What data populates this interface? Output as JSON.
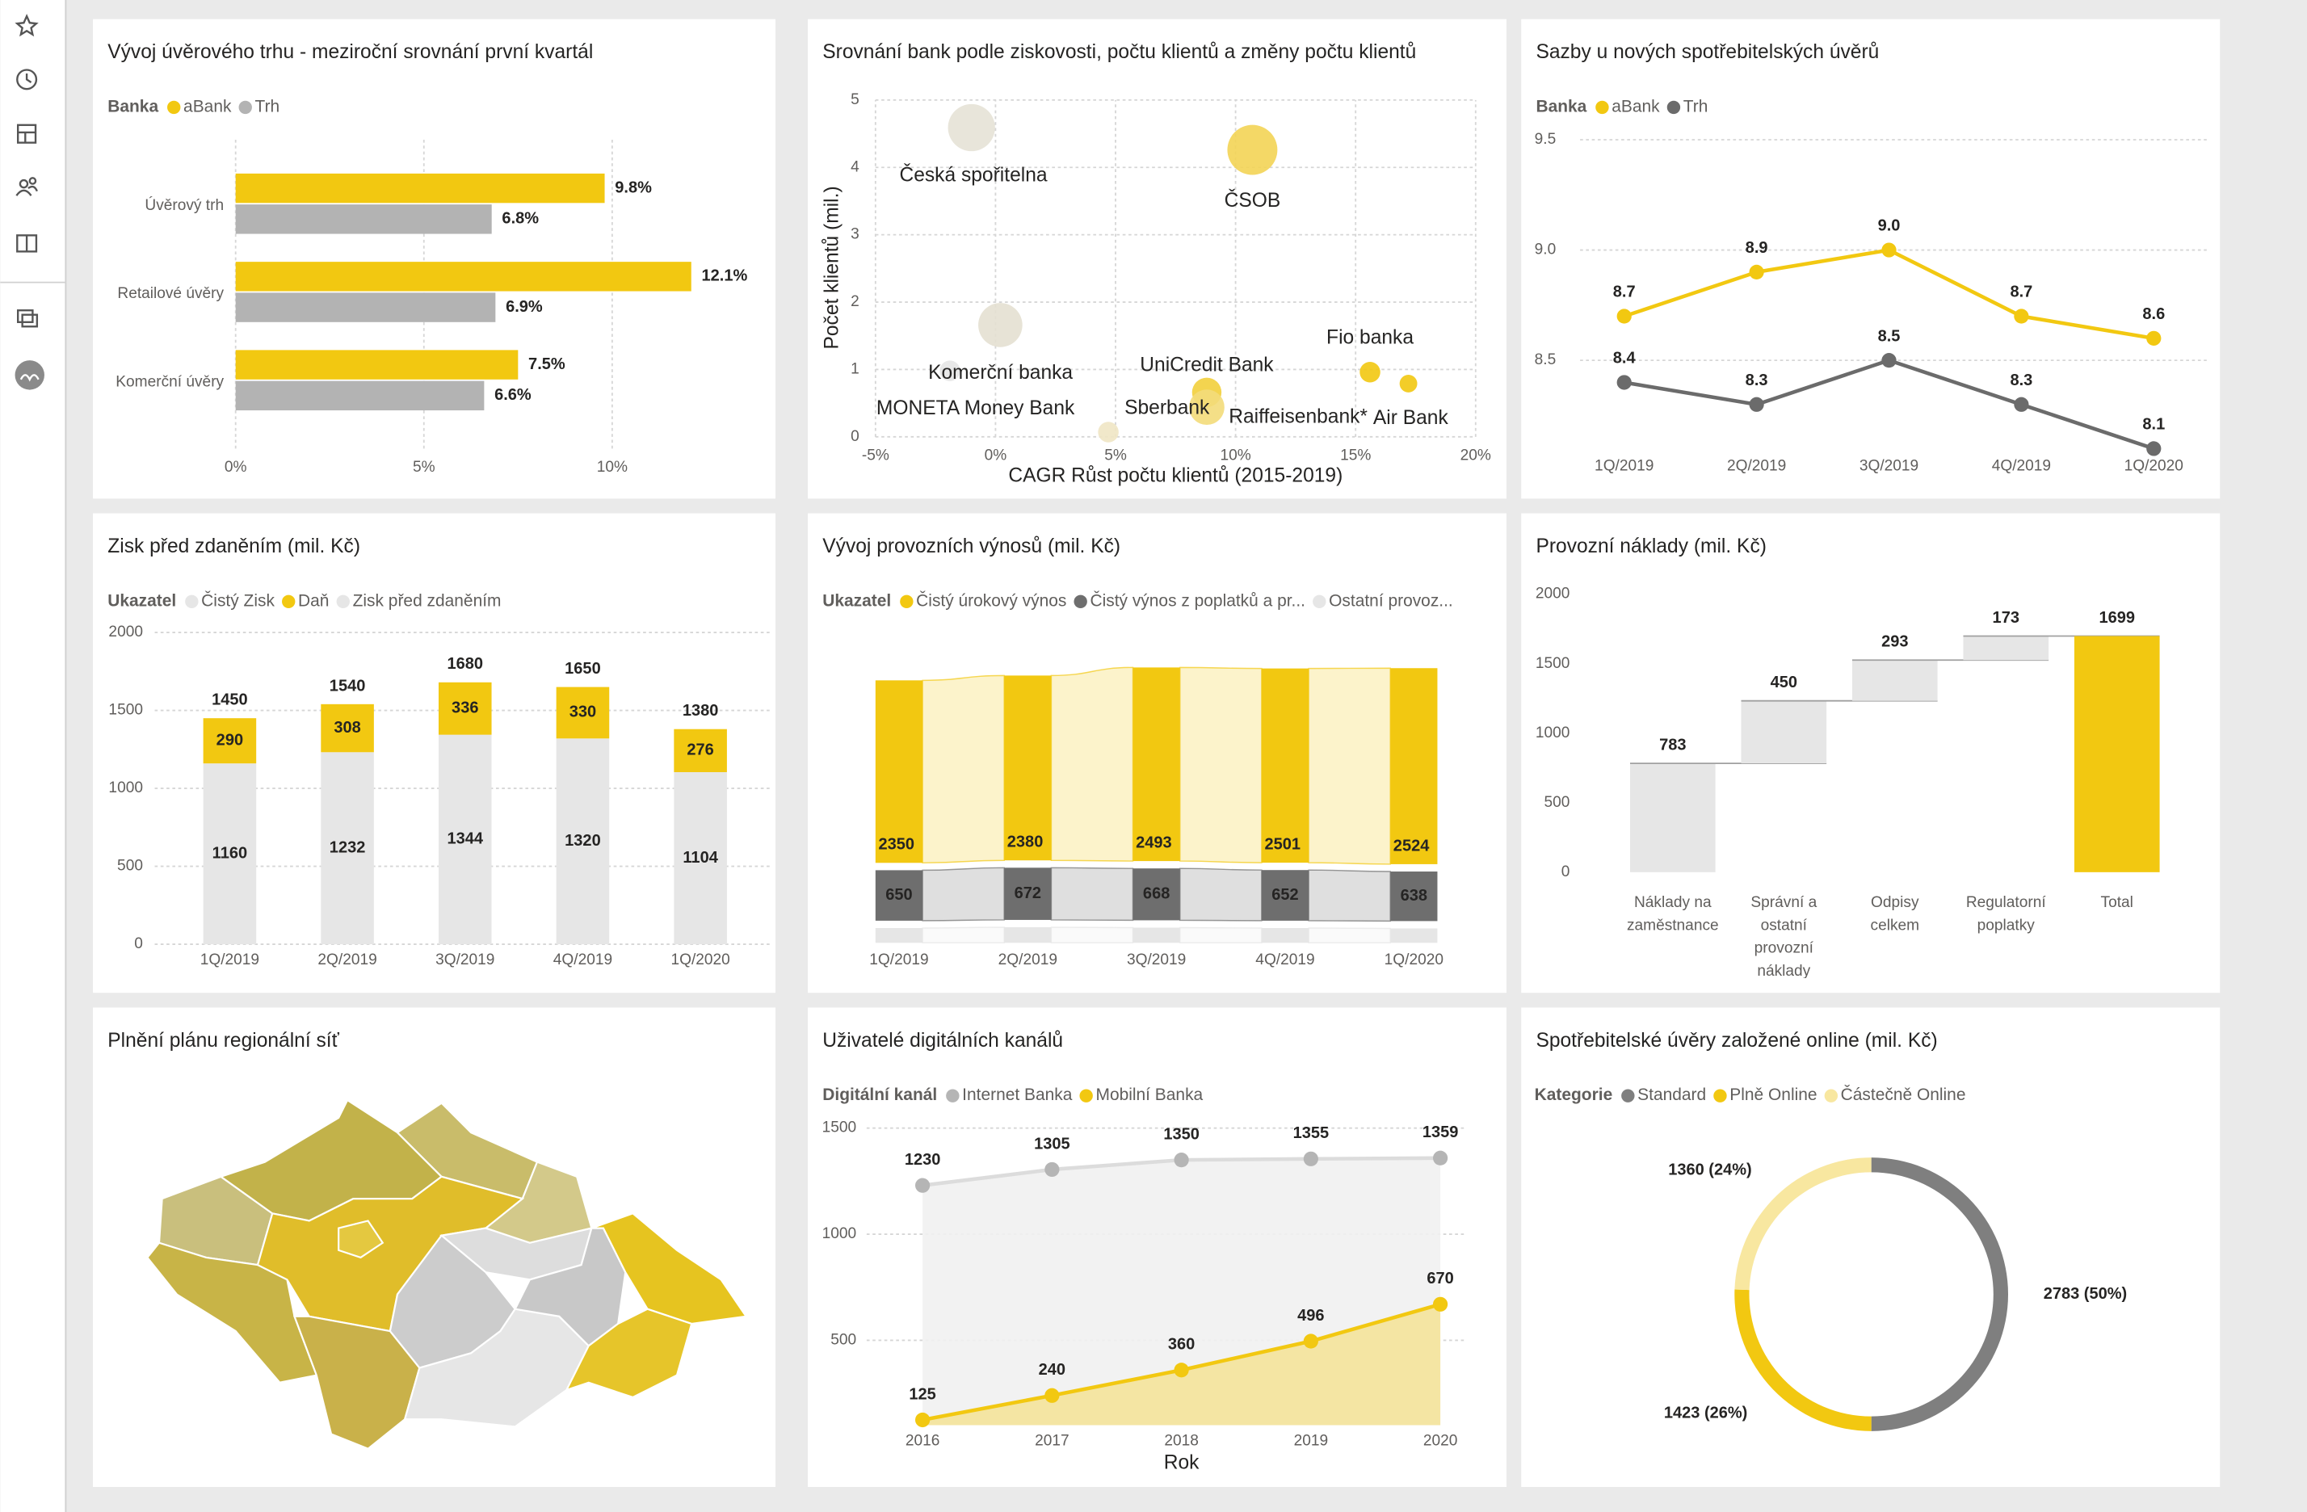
{
  "chart_data": [
    {
      "type": "bar",
      "orientation": "horizontal",
      "title": "Vývoj úvěrového trhu - meziroční srovnání první kvartál",
      "legend_title": "Banka",
      "categories": [
        "Úvěrový trh",
        "Retailové úvěry",
        "Komerční úvěry"
      ],
      "series": [
        {
          "name": "aBank",
          "color": "#f2c811",
          "values": [
            9.8,
            12.1,
            7.5
          ],
          "value_labels": [
            "9.8%",
            "12.1%",
            "7.5%"
          ]
        },
        {
          "name": "Trh",
          "color": "#b3b3b3",
          "values": [
            6.8,
            6.9,
            6.6
          ],
          "value_labels": [
            "6.8%",
            "6.9%",
            "6.6%"
          ]
        }
      ],
      "xlim": [
        0,
        14
      ],
      "xticks": [
        {
          "value": 0,
          "label": "0%"
        },
        {
          "value": 5,
          "label": "5%"
        },
        {
          "value": 10,
          "label": "10%"
        }
      ],
      "grid": true
    },
    {
      "type": "scatter",
      "title": "Srovnání bank podle ziskovosti, počtu klientů a změny počtu klientů",
      "x_label": "CAGR Růst počtu klientů (2015-2019)",
      "y_label": "Počet klientů (mil.)",
      "point_labels": [
        "Česká spořitelna",
        "ČSOB",
        "Komerční banka",
        "MONETA Money Bank",
        "UniCredit Bank",
        "Raiffeisenbank*",
        "Sberbank",
        "Fio banka",
        "Air Bank"
      ],
      "x": [
        -1.0,
        10.7,
        0.2,
        -1.9,
        8.8,
        8.8,
        4.7,
        15.6,
        17.2
      ],
      "values": [
        4.59,
        4.26,
        1.66,
        0.98,
        0.66,
        0.44,
        0.07,
        0.96,
        0.79
      ],
      "sizes": [
        256,
        289,
        225,
        49,
        100,
        144,
        49,
        49,
        36
      ],
      "colors": [
        "#e6e2d6",
        "#f3d455",
        "#e4e0d2",
        "#e6e6e6",
        "#f2cf3c",
        "#f3dc7a",
        "#efe6c4",
        "#f2c811",
        "#f2c811"
      ],
      "xlim": [
        -5,
        20
      ],
      "xticks": [
        {
          "value": -5,
          "label": "-5%"
        },
        {
          "value": 0,
          "label": "0%"
        },
        {
          "value": 5,
          "label": "5%"
        },
        {
          "value": 10,
          "label": "10%"
        },
        {
          "value": 15,
          "label": "15%"
        },
        {
          "value": 20,
          "label": "20%"
        }
      ],
      "ylim": [
        0,
        5
      ],
      "yticks": [
        0,
        1,
        2,
        3,
        4,
        5
      ],
      "grid": true
    },
    {
      "type": "line",
      "title": "Sazby u nových spotřebitelských úvěrů",
      "legend_title": "Banka",
      "categories": [
        "1Q/2019",
        "2Q/2019",
        "3Q/2019",
        "4Q/2019",
        "1Q/2020"
      ],
      "series": [
        {
          "name": "aBank",
          "color": "#f2c811",
          "values": [
            8.7,
            8.9,
            9.0,
            8.7,
            8.6
          ],
          "value_labels": [
            "8.7",
            "8.9",
            "9.0",
            "8.7",
            "8.6"
          ]
        },
        {
          "name": "Trh",
          "color": "#6b6b6b",
          "values": [
            8.4,
            8.3,
            8.5,
            8.3,
            8.1
          ],
          "value_labels": [
            "8.4",
            "8.3",
            "8.5",
            "8.3",
            "8.1"
          ]
        }
      ],
      "ylim": [
        8.1,
        9.5
      ],
      "yticks": [
        8.5,
        {
          "value": 9,
          "label": "9.0"
        },
        9.5
      ],
      "grid": true
    },
    {
      "type": "stacked_bar",
      "title": "Zisk před zdaněním (mil. Kč)",
      "legend_title": "Ukazatel",
      "categories": [
        "1Q/2019",
        "2Q/2019",
        "3Q/2019",
        "4Q/2019",
        "1Q/2020"
      ],
      "series": [
        {
          "name": "Čistý Zisk",
          "color": "#e6e6e6",
          "values": [
            1160,
            1232,
            1344,
            1320,
            1104
          ]
        },
        {
          "name": "Daň",
          "color": "#f2c811",
          "values": [
            290,
            308,
            336,
            330,
            276
          ]
        }
      ],
      "totals": {
        "name": "Zisk před zdaněním",
        "color": "#e6e6e6",
        "values": [
          1450,
          1540,
          1680,
          1650,
          1380
        ]
      },
      "ylim": [
        0,
        2000
      ],
      "yticks": [
        0,
        500,
        1000,
        1500,
        2000
      ],
      "grid": true
    },
    {
      "type": "ribbon",
      "title": "Vývoj provozních výnosů (mil. Kč)",
      "legend_title": "Ukazatel",
      "categories": [
        "1Q/2019",
        "2Q/2019",
        "3Q/2019",
        "4Q/2019",
        "1Q/2020"
      ],
      "series": [
        {
          "name": "Čistý úrokový výnos",
          "color": "#f2c811",
          "values": [
            2350,
            2380,
            2493,
            2501,
            2524
          ]
        },
        {
          "name": "Čistý výnos z poplatků a pr...",
          "color": "#6e6e6e",
          "values": [
            650,
            672,
            668,
            652,
            638
          ]
        },
        {
          "name": "Ostatní provoz...",
          "color": "#e6e6e6",
          "values": [
            190,
            200,
            195,
            190,
            185
          ]
        }
      ]
    },
    {
      "type": "waterfall",
      "title": "Provozní náklady (mil. Kč)",
      "categories": [
        "Náklady na zaměstnance",
        "Správní a ostatní provozní náklady",
        "Odpisy celkem",
        "Regulatorní poplatky",
        "Total"
      ],
      "values": [
        783,
        450,
        293,
        173,
        1699
      ],
      "color": "#e6e6e6",
      "total_color": "#f2c811",
      "ylim": [
        0,
        2000
      ],
      "yticks": [
        0,
        500,
        1000,
        1500,
        2000
      ]
    },
    {
      "type": "map",
      "title": "Plnění plánu regionální síť"
    },
    {
      "type": "area",
      "title": "Uživatelé digitálních kanálů",
      "legend_title": "Digitální kanál",
      "x_label": "Rok",
      "categories": [
        "2016",
        "2017",
        "2018",
        "2019",
        "2020"
      ],
      "series": [
        {
          "name": "Internet Banka",
          "color": "#b5b5b5",
          "values": [
            1230,
            1305,
            1350,
            1355,
            1359
          ]
        },
        {
          "name": "Mobilní Banka",
          "color": "#f2c811",
          "values": [
            125,
            240,
            360,
            496,
            670
          ]
        }
      ],
      "ylim": [
        100,
        1500
      ],
      "yticks": [
        500,
        1000,
        1500
      ],
      "grid": true
    },
    {
      "type": "donut",
      "title": "Spotřebitelské úvěry založené online (mil. Kč)",
      "legend_title": "Kategorie",
      "categories": [
        "Standard",
        "Plně Online",
        "Částečně Online"
      ],
      "values": [
        2783,
        1423,
        1360
      ],
      "value_labels": [
        "2783 (50%)",
        "1423 (26%)",
        "1360 (24%)"
      ],
      "colors": [
        "#7f7f7f",
        "#f2c811",
        "#f8e7a0"
      ]
    }
  ]
}
